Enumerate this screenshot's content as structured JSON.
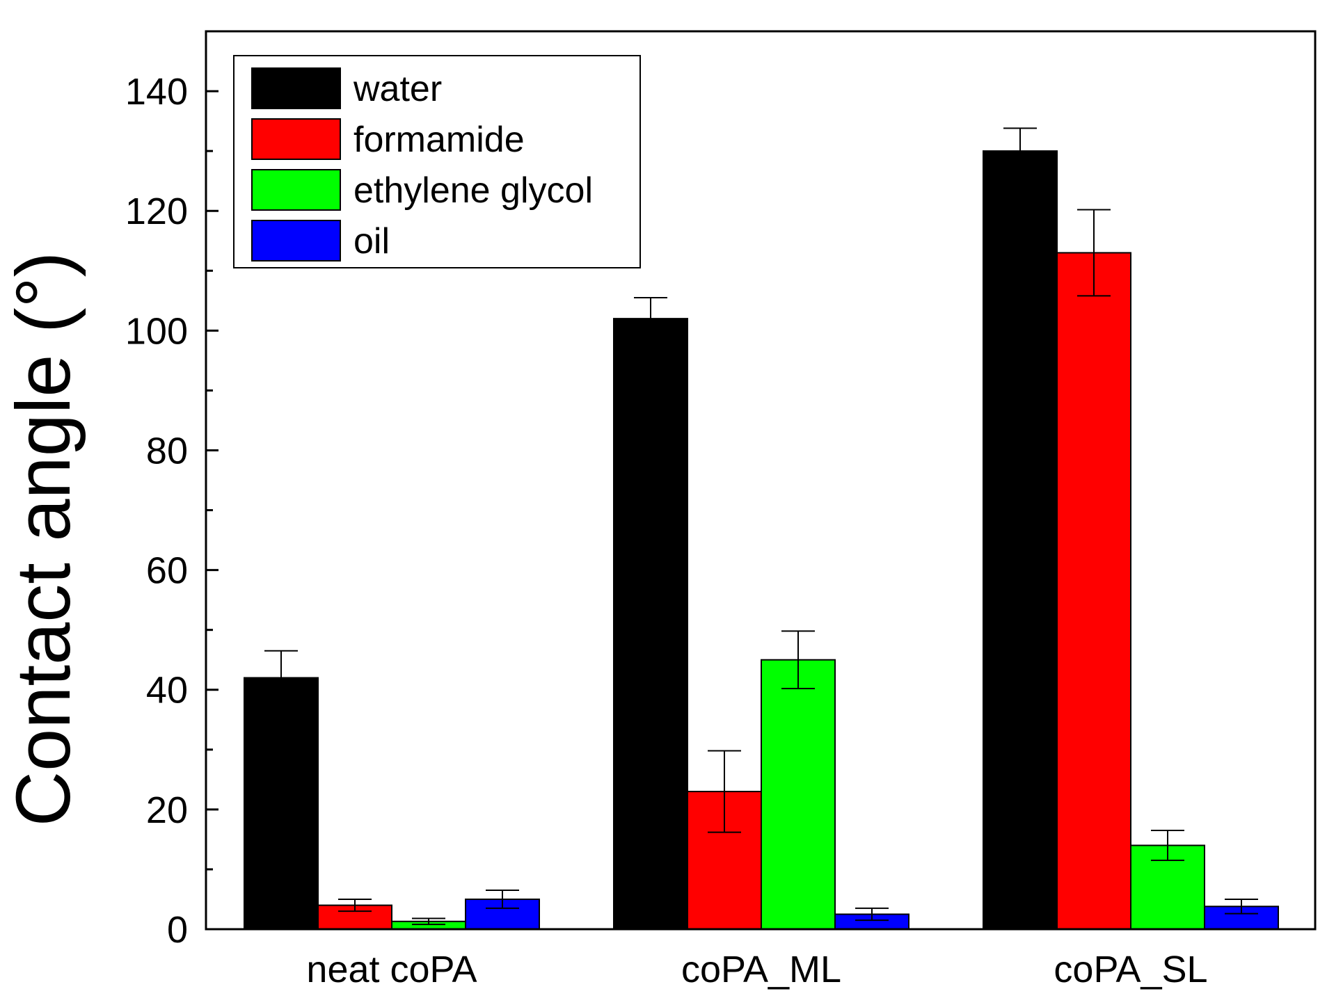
{
  "chart_data": {
    "type": "bar",
    "title": "",
    "xlabel": "",
    "ylabel": "Contact angle (°)",
    "ylim": [
      0,
      150
    ],
    "yticks_major": [
      0,
      20,
      40,
      60,
      80,
      100,
      120,
      140
    ],
    "yticks_minor_step": 10,
    "grid": false,
    "legend_position": "top-left",
    "categories": [
      "neat coPA",
      "coPA_ML",
      "coPA_SL"
    ],
    "series": [
      {
        "name": "water",
        "color": "#000000",
        "values": [
          42,
          102,
          130
        ],
        "errors": [
          4.5,
          3.5,
          3.8
        ]
      },
      {
        "name": "formamide",
        "color": "#ff0000",
        "values": [
          4,
          23,
          113
        ],
        "errors": [
          1.0,
          6.8,
          7.2
        ]
      },
      {
        "name": "ethylene glycol",
        "color": "#00ff00",
        "values": [
          1.3,
          45,
          14
        ],
        "errors": [
          0.5,
          4.8,
          2.5
        ]
      },
      {
        "name": "oil",
        "color": "#0000ff",
        "values": [
          5,
          2.5,
          3.8
        ],
        "errors": [
          1.5,
          1.0,
          1.2
        ]
      }
    ]
  }
}
